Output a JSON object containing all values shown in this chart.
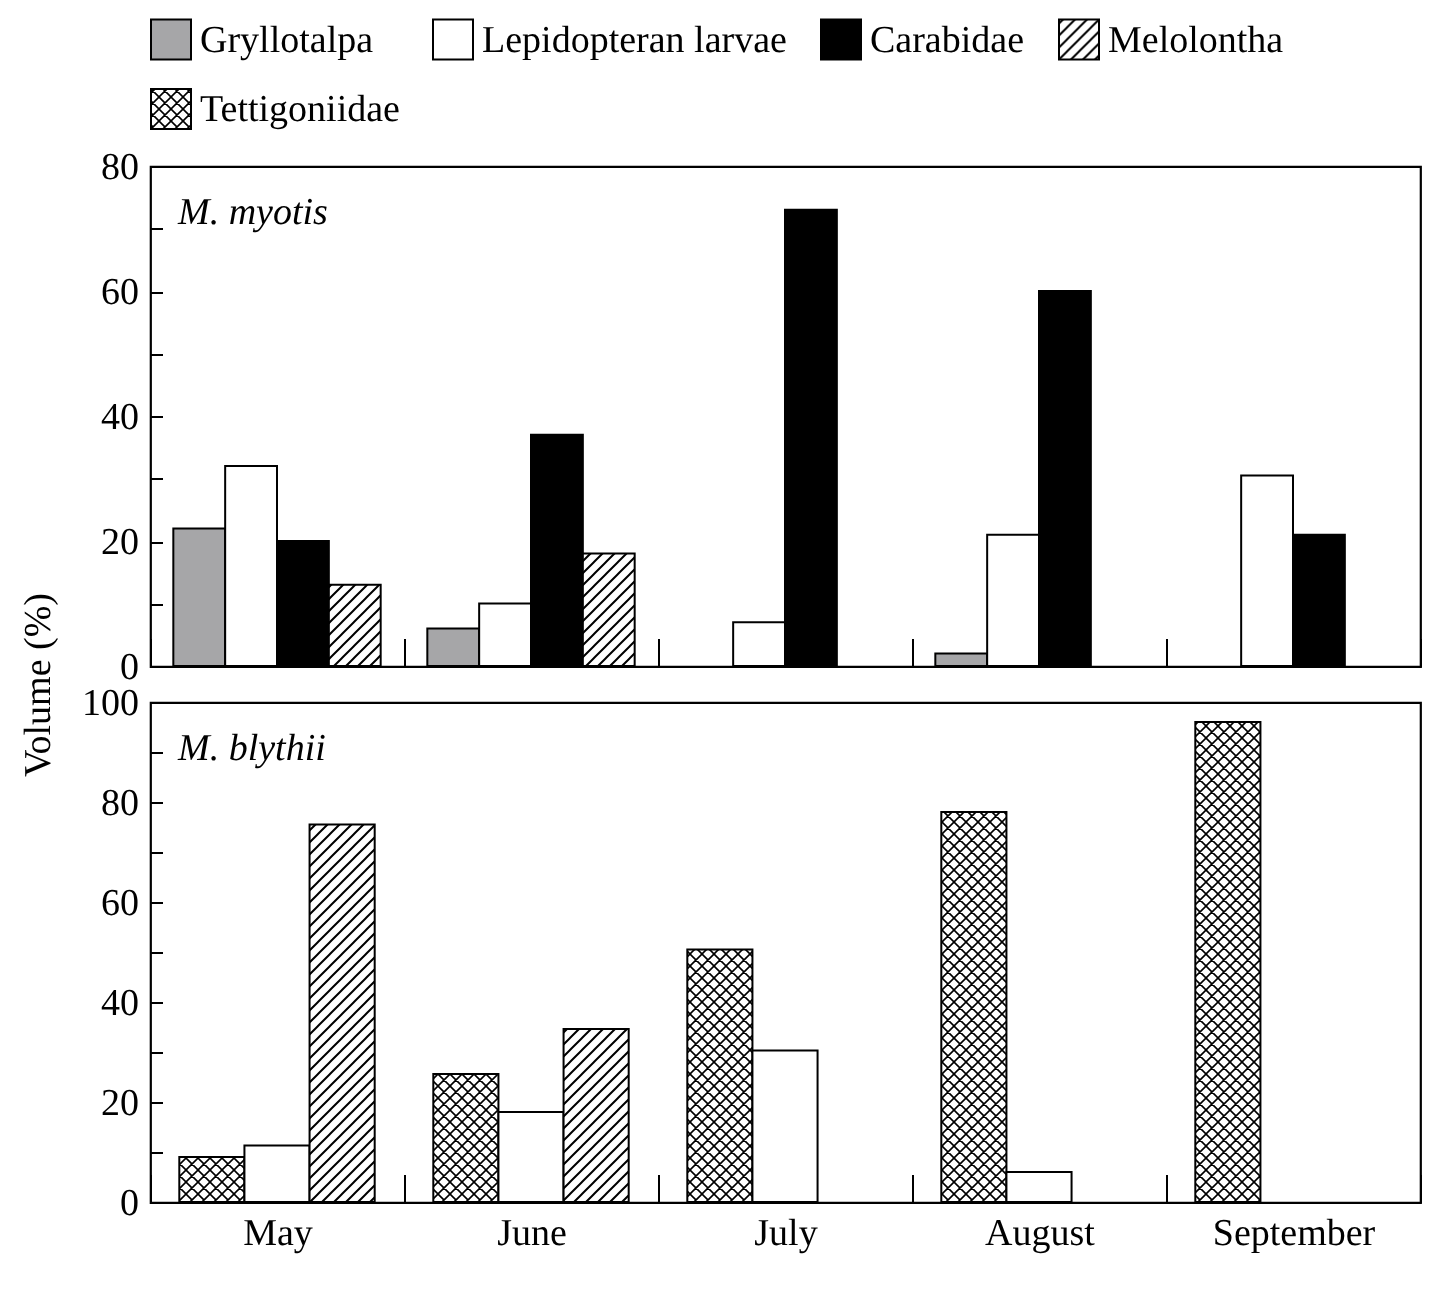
{
  "chart_data": [
    {
      "type": "bar",
      "title": "M. myotis",
      "categories": [
        "May",
        "June",
        "July",
        "August",
        "September"
      ],
      "series": [
        {
          "name": "Gryllotalpa",
          "color": "#a6a6a8",
          "values": [
            22,
            6,
            null,
            2,
            null
          ]
        },
        {
          "name": "Lepidopteran larvae",
          "color": "#ffffff",
          "values": [
            32,
            10,
            7,
            21,
            30.5
          ]
        },
        {
          "name": "Carabidae",
          "color": "#000000",
          "values": [
            20,
            37,
            73,
            60,
            21
          ]
        },
        {
          "name": "Melolontha",
          "color": "#000000",
          "values": [
            13,
            18,
            null,
            null,
            null
          ]
        }
      ],
      "ylim": [
        0,
        80
      ],
      "yticks": [
        0,
        {
          "value": 10,
          "label": null
        },
        20,
        {
          "value": 30,
          "label": null
        },
        40,
        {
          "value": 50,
          "label": null
        },
        60,
        {
          "value": 70,
          "label": null
        },
        80
      ],
      "tick_labels": "y",
      "legend": "top",
      "grid": false
    },
    {
      "type": "bar",
      "title": "M. blythii",
      "ylabel": "Volume (%)",
      "categories": [
        "May",
        "June",
        "July",
        "August",
        "September"
      ],
      "series": [
        {
          "name": "Tettigoniidae",
          "color": "#000000",
          "values": [
            9,
            25.6,
            50.5,
            78,
            96
          ]
        },
        {
          "name": "Lepidopteran larvae",
          "color": "#ffffff",
          "values": [
            11.3,
            18,
            30.3,
            6,
            null
          ]
        },
        {
          "name": "Melolontha",
          "color": "#000000",
          "values": [
            75.5,
            34.6,
            null,
            null,
            null
          ]
        }
      ],
      "ylim": [
        0,
        100
      ],
      "yticks": [
        0,
        {
          "value": 10,
          "label": null
        },
        20,
        {
          "value": 30,
          "label": null
        },
        40,
        {
          "value": 50,
          "label": null
        },
        60,
        {
          "value": 70,
          "label": null
        },
        80,
        {
          "value": 90,
          "label": null
        },
        100
      ],
      "legend": "top",
      "grid": false
    }
  ]
}
